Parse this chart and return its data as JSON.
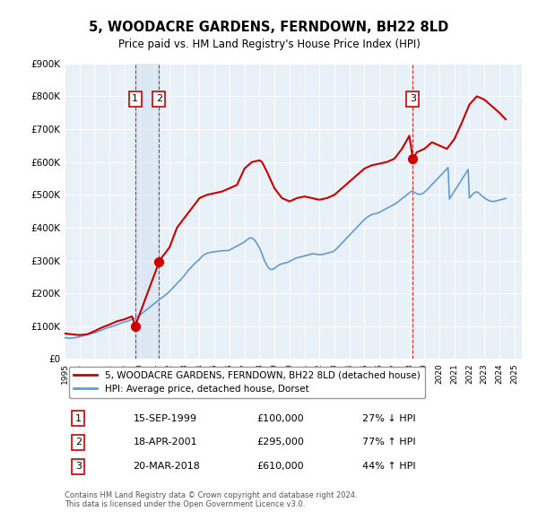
{
  "title": "5, WOODACRE GARDENS, FERNDOWN, BH22 8LD",
  "subtitle": "Price paid vs. HM Land Registry's House Price Index (HPI)",
  "title_fontsize": 11,
  "subtitle_fontsize": 9.5,
  "background_color": "#ffffff",
  "plot_bg_color": "#e8f0f8",
  "grid_color": "#ffffff",
  "red_line_color": "#cc0000",
  "blue_line_color": "#6699cc",
  "sale_marker_color": "#cc0000",
  "dashed_line_color": "#cc0000",
  "shade_color": "#d0e0f0",
  "legend_label_red": "5, WOODACRE GARDENS, FERNDOWN, BH22 8LD (detached house)",
  "legend_label_blue": "HPI: Average price, detached house, Dorset",
  "transaction_labels": [
    "1",
    "2",
    "3"
  ],
  "transaction_dates": [
    "15-SEP-1999",
    "18-APR-2001",
    "20-MAR-2018"
  ],
  "transaction_prices": [
    100000,
    295000,
    610000
  ],
  "transaction_hpi_pct": [
    "27% ↓ HPI",
    "77% ↑ HPI",
    "44% ↑ HPI"
  ],
  "transaction_years": [
    1999.71,
    2001.3,
    2018.22
  ],
  "footer": "Contains HM Land Registry data © Crown copyright and database right 2024.\nThis data is licensed under the Open Government Licence v3.0.",
  "ylim": [
    0,
    900000
  ],
  "xlim_start": 1995.0,
  "xlim_end": 2025.5,
  "hpi_years": [
    1995.0,
    1995.08,
    1995.17,
    1995.25,
    1995.33,
    1995.42,
    1995.5,
    1995.58,
    1995.67,
    1995.75,
    1995.83,
    1995.92,
    1996.0,
    1996.08,
    1996.17,
    1996.25,
    1996.33,
    1996.42,
    1996.5,
    1996.58,
    1996.67,
    1996.75,
    1996.83,
    1996.92,
    1997.0,
    1997.08,
    1997.17,
    1997.25,
    1997.33,
    1997.42,
    1997.5,
    1997.58,
    1997.67,
    1997.75,
    1997.83,
    1997.92,
    1998.0,
    1998.08,
    1998.17,
    1998.25,
    1998.33,
    1998.42,
    1998.5,
    1998.58,
    1998.67,
    1998.75,
    1998.83,
    1998.92,
    1999.0,
    1999.08,
    1999.17,
    1999.25,
    1999.33,
    1999.42,
    1999.5,
    1999.58,
    1999.67,
    1999.75,
    1999.83,
    1999.92,
    2000.0,
    2000.08,
    2000.17,
    2000.25,
    2000.33,
    2000.42,
    2000.5,
    2000.58,
    2000.67,
    2000.75,
    2000.83,
    2000.92,
    2001.0,
    2001.08,
    2001.17,
    2001.25,
    2001.33,
    2001.42,
    2001.5,
    2001.58,
    2001.67,
    2001.75,
    2001.83,
    2001.92,
    2002.0,
    2002.08,
    2002.17,
    2002.25,
    2002.33,
    2002.42,
    2002.5,
    2002.58,
    2002.67,
    2002.75,
    2002.83,
    2002.92,
    2003.0,
    2003.08,
    2003.17,
    2003.25,
    2003.33,
    2003.42,
    2003.5,
    2003.58,
    2003.67,
    2003.75,
    2003.83,
    2003.92,
    2004.0,
    2004.08,
    2004.17,
    2004.25,
    2004.33,
    2004.42,
    2004.5,
    2004.58,
    2004.67,
    2004.75,
    2004.83,
    2004.92,
    2005.0,
    2005.08,
    2005.17,
    2005.25,
    2005.33,
    2005.42,
    2005.5,
    2005.58,
    2005.67,
    2005.75,
    2005.83,
    2005.92,
    2006.0,
    2006.08,
    2006.17,
    2006.25,
    2006.33,
    2006.42,
    2006.5,
    2006.58,
    2006.67,
    2006.75,
    2006.83,
    2006.92,
    2007.0,
    2007.08,
    2007.17,
    2007.25,
    2007.33,
    2007.42,
    2007.5,
    2007.58,
    2007.67,
    2007.75,
    2007.83,
    2007.92,
    2008.0,
    2008.08,
    2008.17,
    2008.25,
    2008.33,
    2008.42,
    2008.5,
    2008.58,
    2008.67,
    2008.75,
    2008.83,
    2008.92,
    2009.0,
    2009.08,
    2009.17,
    2009.25,
    2009.33,
    2009.42,
    2009.5,
    2009.58,
    2009.67,
    2009.75,
    2009.83,
    2009.92,
    2010.0,
    2010.08,
    2010.17,
    2010.25,
    2010.33,
    2010.42,
    2010.5,
    2010.58,
    2010.67,
    2010.75,
    2010.83,
    2010.92,
    2011.0,
    2011.08,
    2011.17,
    2011.25,
    2011.33,
    2011.42,
    2011.5,
    2011.58,
    2011.67,
    2011.75,
    2011.83,
    2011.92,
    2012.0,
    2012.08,
    2012.17,
    2012.25,
    2012.33,
    2012.42,
    2012.5,
    2012.58,
    2012.67,
    2012.75,
    2012.83,
    2012.92,
    2013.0,
    2013.08,
    2013.17,
    2013.25,
    2013.33,
    2013.42,
    2013.5,
    2013.58,
    2013.67,
    2013.75,
    2013.83,
    2013.92,
    2014.0,
    2014.08,
    2014.17,
    2014.25,
    2014.33,
    2014.42,
    2014.5,
    2014.58,
    2014.67,
    2014.75,
    2014.83,
    2014.92,
    2015.0,
    2015.08,
    2015.17,
    2015.25,
    2015.33,
    2015.42,
    2015.5,
    2015.58,
    2015.67,
    2015.75,
    2015.83,
    2015.92,
    2016.0,
    2016.08,
    2016.17,
    2016.25,
    2016.33,
    2016.42,
    2016.5,
    2016.58,
    2016.67,
    2016.75,
    2016.83,
    2016.92,
    2017.0,
    2017.08,
    2017.17,
    2017.25,
    2017.33,
    2017.42,
    2017.5,
    2017.58,
    2017.67,
    2017.75,
    2017.83,
    2017.92,
    2018.0,
    2018.08,
    2018.17,
    2018.25,
    2018.33,
    2018.42,
    2018.5,
    2018.58,
    2018.67,
    2018.75,
    2018.83,
    2018.92,
    2019.0,
    2019.08,
    2019.17,
    2019.25,
    2019.33,
    2019.42,
    2019.5,
    2019.58,
    2019.67,
    2019.75,
    2019.83,
    2019.92,
    2020.0,
    2020.08,
    2020.17,
    2020.25,
    2020.33,
    2020.42,
    2020.5,
    2020.58,
    2020.67,
    2020.75,
    2020.83,
    2020.92,
    2021.0,
    2021.08,
    2021.17,
    2021.25,
    2021.33,
    2021.42,
    2021.5,
    2021.58,
    2021.67,
    2021.75,
    2021.83,
    2021.92,
    2022.0,
    2022.08,
    2022.17,
    2022.25,
    2022.33,
    2022.42,
    2022.5,
    2022.58,
    2022.67,
    2022.75,
    2022.83,
    2022.92,
    2023.0,
    2023.08,
    2023.17,
    2023.25,
    2023.33,
    2023.42,
    2023.5,
    2023.58,
    2023.67,
    2023.75,
    2023.83,
    2023.92,
    2024.0,
    2024.08,
    2024.17,
    2024.25,
    2024.33,
    2024.42
  ],
  "hpi_values": [
    65000,
    64500,
    64000,
    63500,
    63000,
    63500,
    64000,
    64500,
    65000,
    65500,
    66000,
    67000,
    68000,
    69000,
    70000,
    71000,
    72000,
    73000,
    74000,
    75000,
    76000,
    77000,
    78000,
    79000,
    80000,
    81000,
    82500,
    84000,
    85500,
    87000,
    88500,
    90000,
    91500,
    93000,
    94500,
    96000,
    97000,
    98000,
    99000,
    100000,
    101500,
    103000,
    104500,
    106000,
    107500,
    109000,
    110500,
    112000,
    113000,
    114000,
    115000,
    116000,
    117500,
    119000,
    120500,
    122000,
    124000,
    126000,
    128000,
    130000,
    133000,
    136000,
    139000,
    142000,
    145000,
    148000,
    151000,
    154000,
    157000,
    160000,
    163000,
    166000,
    169000,
    172000,
    175000,
    178000,
    181000,
    184000,
    187000,
    190000,
    193000,
    196000,
    199000,
    202000,
    206000,
    210000,
    214000,
    218000,
    222000,
    226000,
    230000,
    234000,
    238000,
    242000,
    246000,
    250000,
    255000,
    260000,
    265000,
    270000,
    274000,
    278000,
    282000,
    286000,
    290000,
    294000,
    297000,
    300000,
    304000,
    308000,
    312000,
    316000,
    318000,
    320000,
    322000,
    323000,
    324000,
    325000,
    325500,
    326000,
    326500,
    327000,
    327500,
    328000,
    328500,
    329000,
    329500,
    330000,
    330000,
    330000,
    330000,
    330000,
    332000,
    334000,
    336000,
    338000,
    340000,
    342000,
    344000,
    346000,
    348000,
    350000,
    352000,
    354000,
    357000,
    360000,
    363000,
    366000,
    368000,
    369000,
    368000,
    366000,
    362000,
    358000,
    352000,
    345000,
    338000,
    330000,
    320000,
    310000,
    300000,
    292000,
    285000,
    279000,
    275000,
    273000,
    273000,
    274000,
    276000,
    279000,
    282000,
    285000,
    287000,
    289000,
    290000,
    291000,
    292000,
    293000,
    294000,
    295000,
    297000,
    299000,
    301000,
    303000,
    305000,
    307000,
    308000,
    309000,
    310000,
    311000,
    312000,
    313000,
    314000,
    315000,
    316000,
    317000,
    318000,
    319000,
    320000,
    320000,
    320000,
    319000,
    319000,
    318000,
    318000,
    318000,
    318000,
    319000,
    320000,
    321000,
    322000,
    323000,
    324000,
    325000,
    326000,
    327000,
    330000,
    333000,
    337000,
    341000,
    345000,
    349000,
    353000,
    357000,
    361000,
    365000,
    369000,
    373000,
    377000,
    381000,
    385000,
    389000,
    393000,
    397000,
    401000,
    405000,
    409000,
    413000,
    417000,
    421000,
    425000,
    428000,
    431000,
    434000,
    436000,
    438000,
    440000,
    441000,
    442000,
    443000,
    444000,
    445000,
    447000,
    449000,
    451000,
    453000,
    455000,
    457000,
    459000,
    461000,
    463000,
    465000,
    467000,
    469000,
    471000,
    473000,
    476000,
    479000,
    482000,
    485000,
    488000,
    491000,
    494000,
    497000,
    500000,
    503000,
    506000,
    509000,
    512000,
    510000,
    508000,
    505000,
    503000,
    502000,
    501000,
    502000,
    503000,
    505000,
    508000,
    511000,
    515000,
    519000,
    523000,
    527000,
    531000,
    535000,
    539000,
    543000,
    547000,
    551000,
    555000,
    559000,
    563000,
    567000,
    571000,
    575000,
    579000,
    583000,
    487000,
    493000,
    499000,
    505000,
    511000,
    517000,
    523000,
    529000,
    535000,
    541000,
    547000,
    553000,
    559000,
    565000,
    571000,
    577000,
    490000,
    495000,
    499000,
    503000,
    506000,
    508000,
    509000,
    507000,
    504000,
    500000,
    497000,
    494000,
    491000,
    488000,
    486000,
    484000,
    482000,
    481000,
    480000,
    480000,
    480000,
    481000,
    482000,
    483000,
    484000,
    485000,
    486000,
    487000,
    488000,
    489000
  ],
  "red_years": [
    1995.0,
    1995.5,
    1996.0,
    1996.5,
    1997.0,
    1997.5,
    1998.0,
    1998.5,
    1999.0,
    1999.5,
    1999.71,
    2001.3,
    2001.5,
    2002.0,
    2002.5,
    2003.0,
    2003.5,
    2004.0,
    2004.5,
    2005.0,
    2005.5,
    2006.0,
    2006.5,
    2007.0,
    2007.5,
    2008.0,
    2008.17,
    2008.5,
    2009.0,
    2009.5,
    2010.0,
    2010.5,
    2011.0,
    2011.5,
    2012.0,
    2012.5,
    2013.0,
    2013.5,
    2014.0,
    2014.5,
    2015.0,
    2015.5,
    2016.0,
    2016.5,
    2017.0,
    2017.5,
    2018.0,
    2018.22,
    2018.5,
    2019.0,
    2019.5,
    2020.0,
    2020.5,
    2021.0,
    2021.5,
    2022.0,
    2022.5,
    2023.0,
    2023.5,
    2024.0,
    2024.42
  ],
  "red_values": [
    78000,
    75000,
    73000,
    75000,
    85000,
    96000,
    105000,
    115000,
    121000,
    130000,
    100000,
    295000,
    310000,
    340000,
    400000,
    430000,
    460000,
    490000,
    500000,
    505000,
    510000,
    520000,
    530000,
    580000,
    600000,
    605000,
    600000,
    570000,
    520000,
    490000,
    480000,
    490000,
    495000,
    490000,
    485000,
    490000,
    500000,
    520000,
    540000,
    560000,
    580000,
    590000,
    595000,
    600000,
    610000,
    640000,
    680000,
    610000,
    630000,
    640000,
    660000,
    650000,
    640000,
    670000,
    720000,
    775000,
    800000,
    790000,
    770000,
    750000,
    730000
  ]
}
